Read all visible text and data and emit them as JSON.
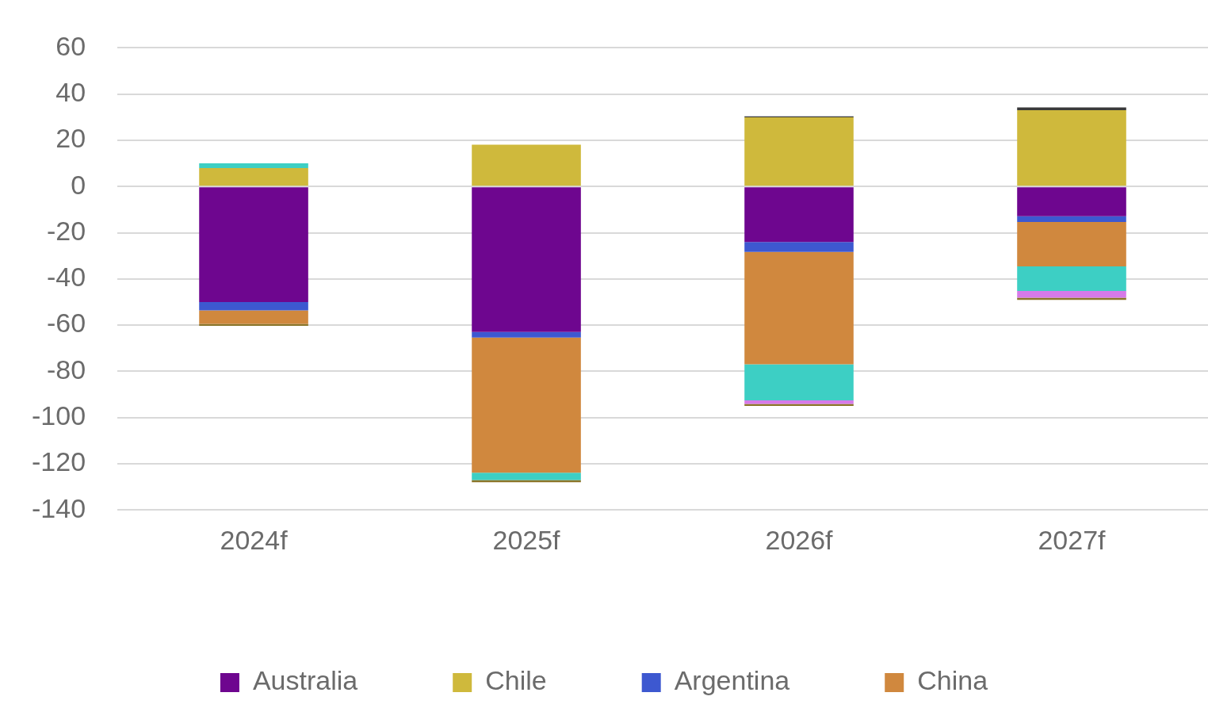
{
  "chart_data": {
    "type": "bar",
    "stacked": true,
    "categories": [
      "2024f",
      "2025f",
      "2026f",
      "2027f"
    ],
    "series": [
      {
        "name": "Australia",
        "color": "#6e068f",
        "values": [
          -50.0,
          -63.0,
          -24.0,
          -12.9
        ]
      },
      {
        "name": "Chile",
        "color": "#cfb93c",
        "values": [
          8.0,
          18.1,
          29.9,
          33.0
        ]
      },
      {
        "name": "Argentina",
        "color": "#3d58d0",
        "values": [
          -3.6,
          -2.4,
          -4.3,
          -2.5
        ]
      },
      {
        "name": "China",
        "color": "#d0883e",
        "values": [
          -5.9,
          -58.5,
          -48.7,
          -19.2
        ]
      },
      {
        "color": "#3dcfc4",
        "values": [
          2.0,
          -3.2,
          -15.6,
          -10.6
        ]
      },
      {
        "color": "#d67ae8",
        "values": [
          null,
          null,
          -1.5,
          -2.9
        ]
      },
      {
        "color": "#8a7428",
        "values": [
          -0.8,
          -0.9,
          -0.9,
          -1.0
        ]
      },
      {
        "color": "#3a3a3a",
        "values": [
          null,
          null,
          0.5,
          1.2
        ]
      }
    ],
    "ylim": [
      -140,
      60
    ],
    "yticks": [
      -140,
      -120,
      -100,
      -80,
      -60,
      -40,
      -20,
      0,
      20,
      40,
      60
    ],
    "grid": "y",
    "legend": "bottom"
  }
}
